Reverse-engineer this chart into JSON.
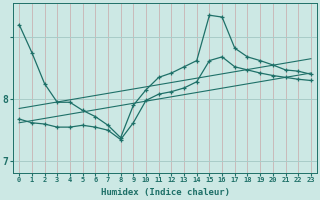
{
  "title": "",
  "xlabel": "Humidex (Indice chaleur)",
  "bg_color": "#cce8e4",
  "line_color": "#1e7068",
  "grid_color_v": "#c8a8a8",
  "grid_color_h": "#a8ccc8",
  "xlim": [
    -0.5,
    23.5
  ],
  "ylim": [
    6.82,
    9.55
  ],
  "yticks": [
    7,
    8,
    9
  ],
  "ytick_labels": [
    "7",
    "8",
    ""
  ],
  "xticks": [
    0,
    1,
    2,
    3,
    4,
    5,
    6,
    7,
    8,
    9,
    10,
    11,
    12,
    13,
    14,
    15,
    16,
    17,
    18,
    19,
    20,
    21,
    22,
    23
  ],
  "series": [
    {
      "x": [
        0,
        1,
        2,
        3,
        4,
        5,
        6,
        7,
        8,
        9,
        10,
        11,
        12,
        13,
        14,
        15,
        16,
        17,
        18,
        19,
        20,
        21,
        22,
        23
      ],
      "y": [
        9.2,
        8.75,
        8.25,
        7.95,
        7.95,
        7.82,
        7.72,
        7.58,
        7.38,
        7.9,
        8.15,
        8.35,
        8.42,
        8.52,
        8.62,
        9.35,
        9.32,
        8.82,
        8.68,
        8.62,
        8.55,
        8.47,
        8.45,
        8.4
      ],
      "marker": true
    },
    {
      "x": [
        0,
        1,
        2,
        3,
        4,
        5,
        6,
        7,
        8,
        9,
        10,
        11,
        12,
        13,
        14,
        15,
        16,
        17,
        18,
        19,
        20,
        21,
        22,
        23
      ],
      "y": [
        7.68,
        7.62,
        7.6,
        7.55,
        7.55,
        7.58,
        7.55,
        7.5,
        7.35,
        7.62,
        7.98,
        8.08,
        8.12,
        8.18,
        8.28,
        8.62,
        8.68,
        8.52,
        8.47,
        8.42,
        8.38,
        8.35,
        8.32,
        8.3
      ],
      "marker": true
    },
    {
      "x": [
        0,
        23
      ],
      "y": [
        7.62,
        8.42
      ],
      "marker": false
    },
    {
      "x": [
        0,
        23
      ],
      "y": [
        7.85,
        8.65
      ],
      "marker": false
    }
  ]
}
